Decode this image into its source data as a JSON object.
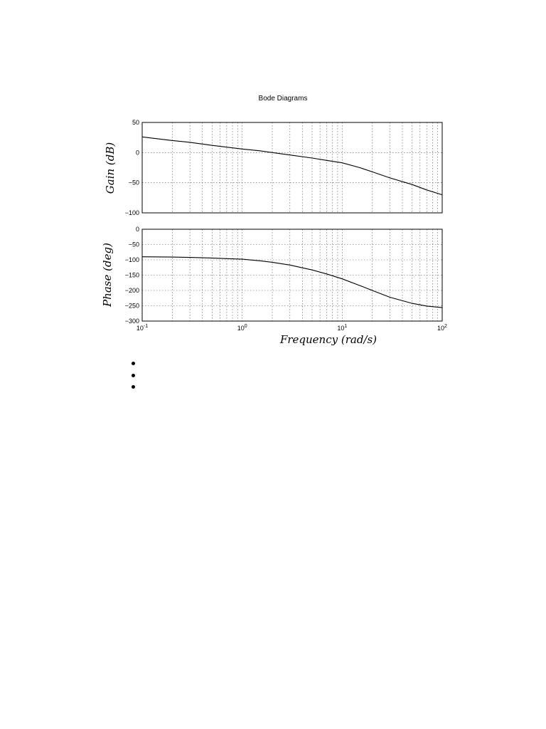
{
  "chart_data": [
    {
      "type": "line",
      "title": "Bode Diagrams",
      "xlabel": "",
      "ylabel": "Gain (dB)",
      "xscale": "log",
      "xlim": [
        0.1,
        100
      ],
      "ylim": [
        -100,
        50
      ],
      "yticks": [
        50,
        0,
        -50,
        -100
      ],
      "grid": true,
      "series": [
        {
          "x": [
            0.1,
            0.2,
            0.3,
            0.5,
            0.7,
            1,
            1.5,
            2,
            3,
            5,
            7,
            10,
            15,
            20,
            30,
            50,
            70,
            100
          ],
          "values": [
            26,
            20,
            17,
            12,
            9,
            6,
            3,
            0,
            -4,
            -9,
            -13,
            -17,
            -25,
            -32,
            -42,
            -53,
            -62,
            -70
          ]
        }
      ]
    },
    {
      "type": "line",
      "xlabel": "Frequency (rad/s)",
      "ylabel": "Phase (deg)",
      "xscale": "log",
      "xlim": [
        0.1,
        100
      ],
      "ylim": [
        -300,
        0
      ],
      "xticks": [
        "10^-1",
        "10^0",
        "10^1",
        "10^2"
      ],
      "yticks": [
        0,
        -50,
        -100,
        -150,
        -200,
        -250,
        -300
      ],
      "grid": true,
      "series": [
        {
          "x": [
            0.1,
            0.2,
            0.3,
            0.5,
            0.7,
            1,
            1.5,
            2,
            3,
            5,
            7,
            10,
            15,
            20,
            30,
            50,
            70,
            100
          ],
          "values": [
            -90,
            -91,
            -92,
            -94,
            -96,
            -98,
            -103,
            -108,
            -117,
            -133,
            -146,
            -162,
            -184,
            -200,
            -222,
            -242,
            -251,
            -256
          ]
        }
      ]
    }
  ],
  "labels": {
    "title": "Bode Diagrams",
    "gain_ylabel": "Gain (dB)",
    "phase_ylabel": "Phase (deg)",
    "xlabel": "Frequency (rad/s)",
    "xtick_base": "10",
    "xtick_exps": [
      "-1",
      "0",
      "1",
      "2"
    ],
    "gain_yticks": [
      "50",
      "0",
      "−50",
      "−100"
    ],
    "phase_yticks": [
      "0",
      "−50",
      "−100",
      "−150",
      "−200",
      "−250",
      "−300"
    ]
  },
  "bullets": [
    "",
    "",
    ""
  ]
}
